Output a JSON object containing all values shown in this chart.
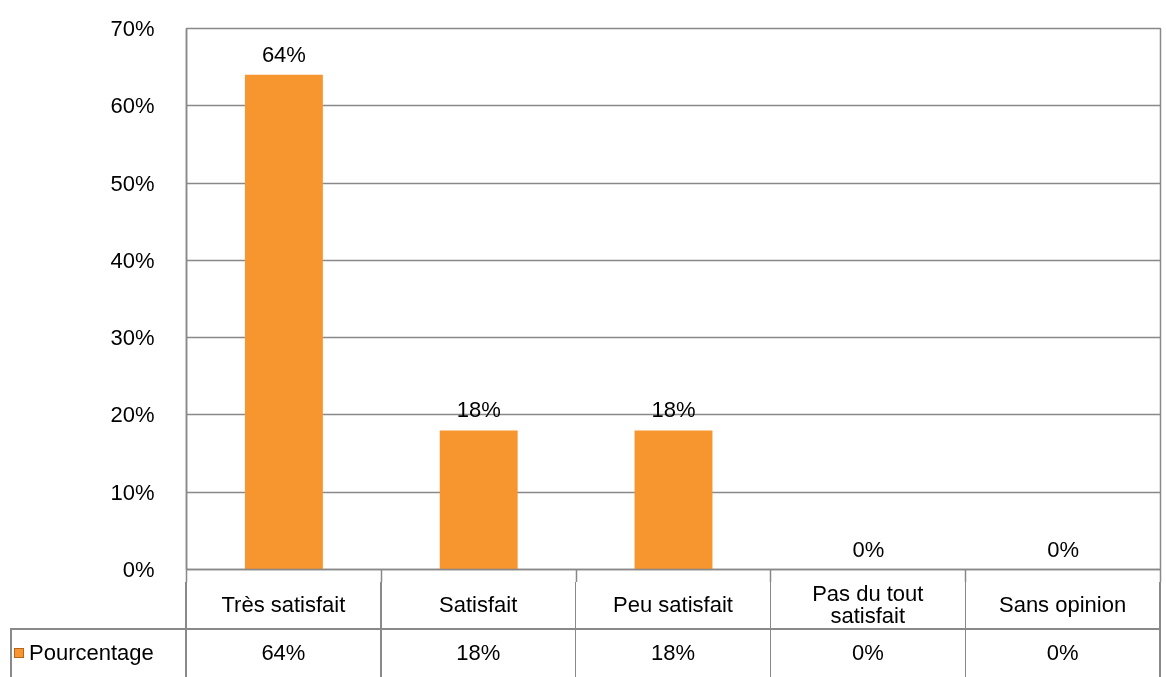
{
  "chart_data": {
    "type": "bar",
    "categories": [
      "Très satisfait",
      "Satisfait",
      "Peu satisfait",
      "Pas du tout satisfait",
      "Sans opinion"
    ],
    "series": [
      {
        "name": "Pourcentage",
        "color": "#f7952e",
        "values": [
          64,
          18,
          18,
          0,
          0
        ],
        "value_labels": [
          "64%",
          "18%",
          "18%",
          "0%",
          "0%"
        ]
      }
    ],
    "ylim": [
      0,
      70
    ],
    "yticks": [
      {
        "value": 0,
        "label": "0%"
      },
      {
        "value": 10,
        "label": "10%"
      },
      {
        "value": 20,
        "label": "20%"
      },
      {
        "value": 30,
        "label": "30%"
      },
      {
        "value": 40,
        "label": "40%"
      },
      {
        "value": 50,
        "label": "50%"
      },
      {
        "value": 60,
        "label": "60%"
      },
      {
        "value": 70,
        "label": "70%"
      }
    ],
    "grid": "y",
    "legend": "bottom left"
  }
}
